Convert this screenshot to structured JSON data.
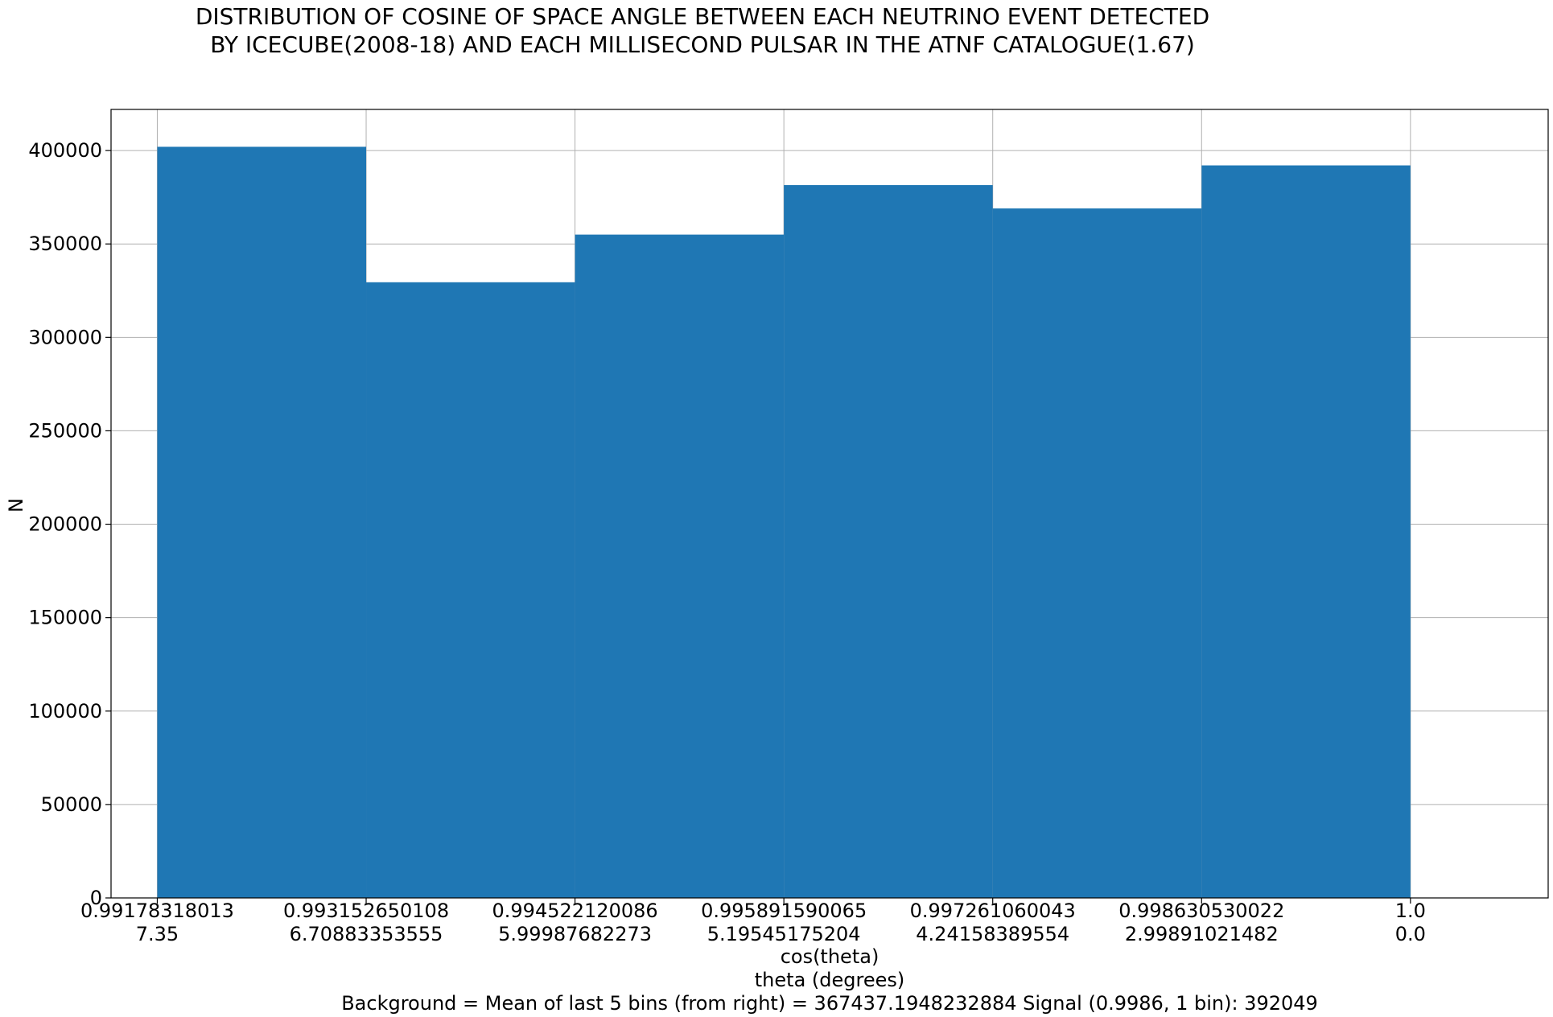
{
  "chart_data": {
    "type": "bar",
    "title": [
      "DISTRIBUTION OF COSINE OF SPACE ANGLE BETWEEN EACH NEUTRINO EVENT DETECTED",
      "BY ICECUBE(2008-18) AND EACH MILLISECOND PULSAR IN THE ATNF CATALOGUE(1.67)"
    ],
    "ylabel": "N",
    "xlabel": [
      "cos(theta)",
      "theta (degrees)"
    ],
    "footer": "Background = Mean of last 5 bins (from right) = 367437.1948232884    Signal (0.9986, 1 bin): 392049",
    "x_ticks_cos": [
      "0.99178318013",
      "0.993152650108",
      "0.994522120086",
      "0.995891590065",
      "0.997261060043",
      "0.998630530022",
      "1.0"
    ],
    "x_ticks_theta": [
      "7.35",
      "6.70883353555",
      "5.99987682273",
      "5.19545175204",
      "4.24158389554",
      "2.99891021482",
      "0.0"
    ],
    "bins": [
      {
        "left": 0.99178318013,
        "right": 0.993152650108,
        "value": 402000
      },
      {
        "left": 0.993152650108,
        "right": 0.994522120086,
        "value": 329500
      },
      {
        "left": 0.994522120086,
        "right": 0.995891590065,
        "value": 355000
      },
      {
        "left": 0.995891590065,
        "right": 0.997261060043,
        "value": 381500
      },
      {
        "left": 0.997261060043,
        "right": 0.998630530022,
        "value": 369000
      },
      {
        "left": 0.998630530022,
        "right": 1.0,
        "value": 392049
      }
    ],
    "y_ticks": [
      "0",
      "50000",
      "100000",
      "150000",
      "200000",
      "250000",
      "300000",
      "350000",
      "400000"
    ],
    "ylim": [
      0,
      422000
    ],
    "xlim": [
      0.99148,
      1.000903
    ],
    "grid": true,
    "bar_color": "#1f77b4"
  }
}
